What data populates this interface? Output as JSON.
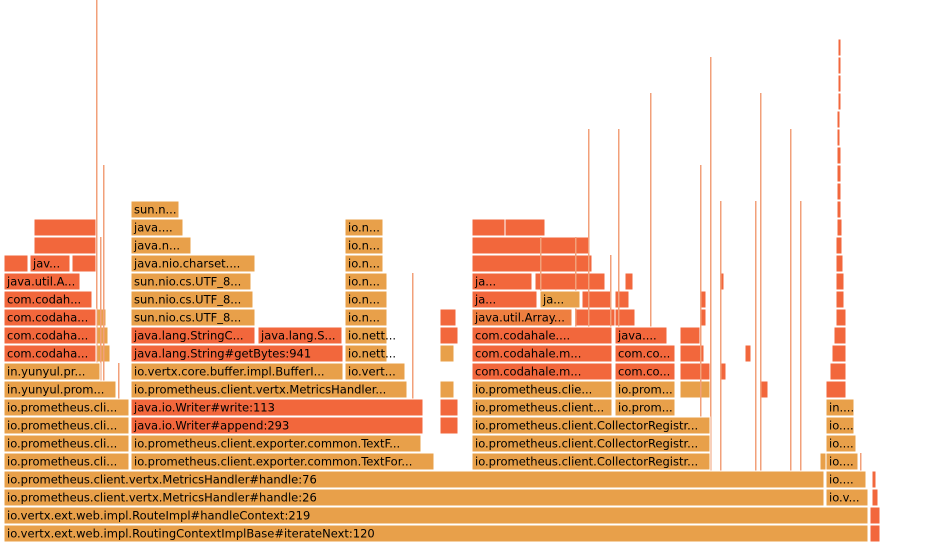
{
  "frames": [
    {
      "label": "io.vertx.ext.web.impl.RoutingContextImplBase#iterateNext:120"
    },
    {
      "label": "io.vertx.ext.web.impl.RouteImpl#handleContext:219"
    },
    {
      "label": "io.prometheus.client.vertx.MetricsHandler#handle:26"
    },
    {
      "label": "io.v..."
    },
    {
      "label": "io.prometheus.client.vertx.MetricsHandler#handle:76"
    },
    {
      "label": "io...."
    },
    {
      "label": "io.prometheus.cli..."
    },
    {
      "label": "io.prometheus.client.exporter.common.TextFor..."
    },
    {
      "label": "io.prometheus.client.CollectorRegistr..."
    },
    {
      "label": "io...."
    },
    {
      "label": "io.prometheus.cli..."
    },
    {
      "label": "io.prometheus.client.exporter.common.TextF..."
    },
    {
      "label": "io.prometheus.client.CollectorRegistr..."
    },
    {
      "label": "io...."
    },
    {
      "label": "io.prometheus.cli..."
    },
    {
      "label": "java.io.Writer#append:293"
    },
    {
      "label": "io.prometheus.client.CollectorRegistr..."
    },
    {
      "label": "io...."
    },
    {
      "label": "io.prometheus.cli..."
    },
    {
      "label": "java.io.Writer#write:113"
    },
    {
      "label": "io.prometheus.client..."
    },
    {
      "label": "io.prom..."
    },
    {
      "label": "in...."
    },
    {
      "label": "in.yunyul.prom..."
    },
    {
      "label": "io.prometheus.client.vertx.MetricsHandler..."
    },
    {
      "label": "io.prometheus.clie..."
    },
    {
      "label": "io.prom..."
    },
    {
      "label": "in.yunyul.pr..."
    },
    {
      "label": "io.vertx.core.buffer.impl.BufferI..."
    },
    {
      "label": "io.vert..."
    },
    {
      "label": "com.codahale.m..."
    },
    {
      "label": "com.co..."
    },
    {
      "label": "com.codaha..."
    },
    {
      "label": "java.lang.String#getBytes:941"
    },
    {
      "label": "io.nett..."
    },
    {
      "label": "com.codahale.m..."
    },
    {
      "label": "com.co..."
    },
    {
      "label": "com.codaha..."
    },
    {
      "label": "java.lang.StringC..."
    },
    {
      "label": "java.lang.S..."
    },
    {
      "label": "io.nett..."
    },
    {
      "label": "com.codahale...."
    },
    {
      "label": "java...."
    },
    {
      "label": "com.codaha..."
    },
    {
      "label": "sun.nio.cs.UTF_8..."
    },
    {
      "label": "io.n..."
    },
    {
      "label": "java.util.Array..."
    },
    {
      "label": "com.codah..."
    },
    {
      "label": "sun.nio.cs.UTF_8..."
    },
    {
      "label": "io.n..."
    },
    {
      "label": "ja..."
    },
    {
      "label": "ja..."
    },
    {
      "label": "java.util.A..."
    },
    {
      "label": "sun.nio.cs.UTF_8..."
    },
    {
      "label": "io.n..."
    },
    {
      "label": "ja..."
    },
    {
      "label": "jav..."
    },
    {
      "label": "java.nio.charset...."
    },
    {
      "label": "io.n..."
    },
    {
      "label": "java.n..."
    },
    {
      "label": "io.n..."
    },
    {
      "label": "java...."
    },
    {
      "label": "io.n..."
    },
    {
      "label": "sun.n..."
    }
  ]
}
